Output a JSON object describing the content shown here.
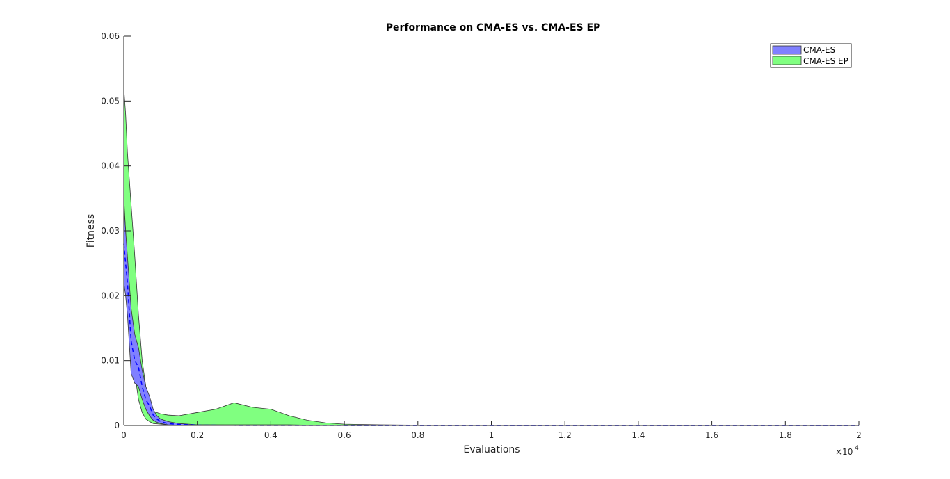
{
  "chart_data": {
    "type": "area",
    "title": "Performance on CMA-ES vs. CMA-ES EP",
    "xlabel": "Evaluations",
    "ylabel": "Fitness",
    "x_exponent_label": "×10",
    "x_exponent": "4",
    "xlim": [
      0,
      20000
    ],
    "ylim": [
      0,
      0.06
    ],
    "xticks": [
      0,
      2000,
      4000,
      6000,
      8000,
      10000,
      12000,
      14000,
      16000,
      18000,
      20000
    ],
    "xtick_labels": [
      "0",
      "0.2",
      "0.4",
      "0.6",
      "0.8",
      "1",
      "1.2",
      "1.4",
      "1.6",
      "1.8",
      "2"
    ],
    "yticks": [
      0,
      0.01,
      0.02,
      0.03,
      0.04,
      0.05,
      0.06
    ],
    "ytick_labels": [
      "0",
      "0.01",
      "0.02",
      "0.03",
      "0.04",
      "0.05",
      "0.06"
    ],
    "grid": false,
    "legend": "top-right",
    "legend_entries": [
      "CMA-ES",
      "CMA-ES EP"
    ],
    "series": [
      {
        "name": "CMA-ES EP",
        "color": "#00ff00",
        "x": [
          0,
          50,
          100,
          200,
          300,
          400,
          500,
          600,
          700,
          800,
          1000,
          1200,
          1500,
          2000,
          2500,
          3000,
          3500,
          4000,
          4500,
          5000,
          5500,
          6000,
          7000,
          8000,
          10000,
          20000
        ],
        "upper": [
          0.052,
          0.048,
          0.042,
          0.034,
          0.026,
          0.017,
          0.01,
          0.006,
          0.003,
          0.0022,
          0.0018,
          0.0016,
          0.0015,
          0.002,
          0.0025,
          0.0035,
          0.0028,
          0.0025,
          0.0015,
          0.0008,
          0.0004,
          0.0002,
          0.0001,
          5e-05,
          2e-05,
          1e-05
        ],
        "lower": [
          0.035,
          0.03,
          0.022,
          0.014,
          0.008,
          0.004,
          0.002,
          0.001,
          0.0006,
          0.0003,
          0.0002,
          0.0001,
          0.0001,
          0.0001,
          0.0001,
          0.0001,
          0.0001,
          0.0001,
          0.0001,
          5e-05,
          3e-05,
          2e-05,
          1e-05,
          0.0,
          0.0,
          0.0
        ]
      },
      {
        "name": "CMA-ES",
        "color": "#0000ff",
        "x": [
          0,
          50,
          100,
          200,
          300,
          400,
          500,
          600,
          700,
          800,
          900,
          1000,
          1200,
          1500,
          2000,
          3000,
          5000,
          8000,
          12000,
          20000
        ],
        "upper": [
          0.034,
          0.03,
          0.026,
          0.018,
          0.014,
          0.012,
          0.0085,
          0.006,
          0.0045,
          0.0025,
          0.0015,
          0.001,
          0.0006,
          0.0003,
          0.0001,
          5e-05,
          2e-05,
          1e-05,
          0.0,
          0.0
        ],
        "lower": [
          0.022,
          0.02,
          0.017,
          0.008,
          0.0065,
          0.006,
          0.004,
          0.0025,
          0.0015,
          0.0008,
          0.0005,
          0.0003,
          0.0001,
          5e-05,
          2e-05,
          1e-05,
          0.0,
          0.0,
          0.0,
          0.0
        ],
        "mean": [
          0.028,
          0.025,
          0.022,
          0.013,
          0.01,
          0.009,
          0.006,
          0.004,
          0.003,
          0.0016,
          0.001,
          0.0006,
          0.0003,
          0.00015,
          5e-05,
          2e-05,
          1e-05,
          0.0,
          0.0,
          0.0
        ]
      }
    ]
  }
}
